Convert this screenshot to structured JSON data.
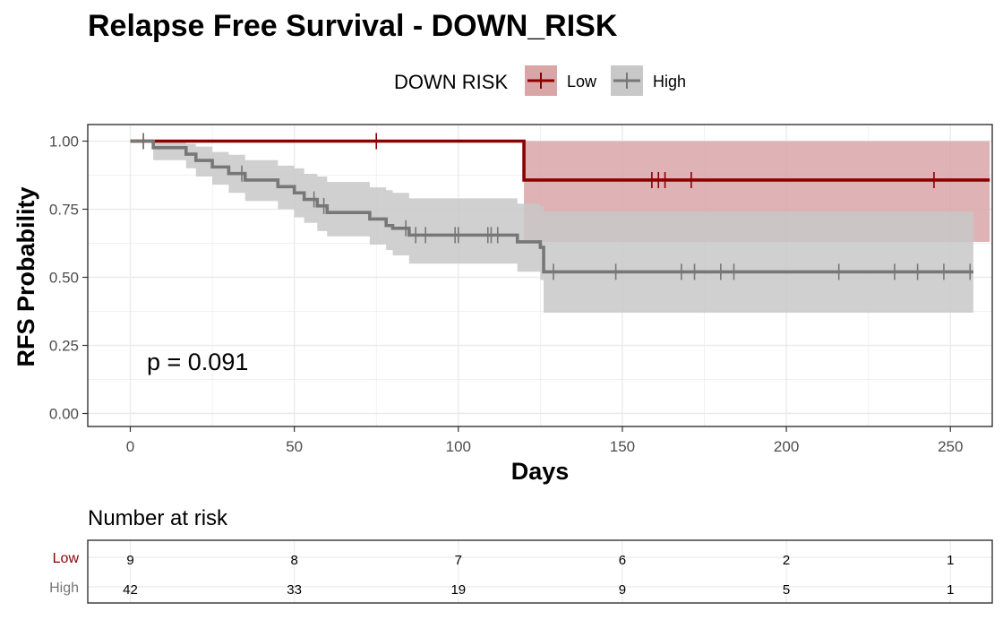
{
  "colors": {
    "low": "#8B0000",
    "high": "#777777",
    "low_fill": "#d9a6a8",
    "high_fill": "#c8c8c8",
    "grid": "#ebebeb"
  },
  "chart_data": {
    "type": "line",
    "title": "Relapse Free Survival - DOWN_RISK",
    "xlabel": "Days",
    "ylabel": "RFS Probability",
    "xlim": [
      0,
      262
    ],
    "ylim": [
      0,
      1
    ],
    "x_ticks": [
      0,
      50,
      100,
      150,
      200,
      250
    ],
    "y_ticks": [
      "0.00",
      "0.25",
      "0.50",
      "0.75",
      "1.00"
    ],
    "grid": true,
    "legend": {
      "title": "DOWN RISK",
      "position": "top",
      "entries": [
        "Low",
        "High"
      ]
    },
    "annotation": "p = 0.091",
    "series": [
      {
        "name": "Low",
        "color": "#8B0000",
        "steps": [
          [
            0,
            1.0
          ],
          [
            120,
            0.857
          ],
          [
            262,
            0.857
          ]
        ],
        "ci_upper": [
          [
            120,
            1.0
          ],
          [
            262,
            1.0
          ]
        ],
        "ci_lower": [
          [
            120,
            0.63
          ],
          [
            262,
            0.63
          ]
        ],
        "censor_times": [
          4,
          75,
          159,
          161,
          163,
          171,
          245
        ]
      },
      {
        "name": "High",
        "color": "#777777",
        "steps": [
          [
            0,
            1.0
          ],
          [
            7,
            0.976
          ],
          [
            17,
            0.952
          ],
          [
            20,
            0.929
          ],
          [
            25,
            0.905
          ],
          [
            30,
            0.881
          ],
          [
            35,
            0.857
          ],
          [
            45,
            0.833
          ],
          [
            50,
            0.81
          ],
          [
            53,
            0.786
          ],
          [
            57,
            0.762
          ],
          [
            60,
            0.738
          ],
          [
            73,
            0.714
          ],
          [
            78,
            0.69
          ],
          [
            80,
            0.68
          ],
          [
            85,
            0.655
          ],
          [
            118,
            0.63
          ],
          [
            125,
            0.61
          ],
          [
            126,
            0.52
          ],
          [
            257,
            0.52
          ]
        ],
        "ci_upper": [
          [
            7,
            1.0
          ],
          [
            17,
            0.99
          ],
          [
            20,
            0.98
          ],
          [
            25,
            0.96
          ],
          [
            30,
            0.95
          ],
          [
            35,
            0.93
          ],
          [
            45,
            0.91
          ],
          [
            50,
            0.9
          ],
          [
            53,
            0.88
          ],
          [
            57,
            0.87
          ],
          [
            60,
            0.85
          ],
          [
            73,
            0.83
          ],
          [
            78,
            0.82
          ],
          [
            80,
            0.81
          ],
          [
            85,
            0.79
          ],
          [
            118,
            0.77
          ],
          [
            125,
            0.76
          ],
          [
            126,
            0.74
          ],
          [
            257,
            0.74
          ]
        ],
        "ci_lower": [
          [
            7,
            0.93
          ],
          [
            17,
            0.9
          ],
          [
            20,
            0.87
          ],
          [
            25,
            0.84
          ],
          [
            30,
            0.81
          ],
          [
            35,
            0.78
          ],
          [
            45,
            0.75
          ],
          [
            50,
            0.72
          ],
          [
            53,
            0.7
          ],
          [
            57,
            0.67
          ],
          [
            60,
            0.65
          ],
          [
            73,
            0.62
          ],
          [
            78,
            0.6
          ],
          [
            80,
            0.58
          ],
          [
            85,
            0.55
          ],
          [
            118,
            0.52
          ],
          [
            125,
            0.49
          ],
          [
            126,
            0.37
          ],
          [
            257,
            0.37
          ]
        ],
        "censor_times": [
          4,
          34,
          56,
          59,
          84,
          87,
          90,
          99,
          100,
          109,
          110,
          112,
          129,
          148,
          168,
          172,
          180,
          184,
          216,
          233,
          240,
          248,
          256
        ]
      }
    ]
  },
  "risk_table": {
    "title": "Number at risk",
    "times": [
      0,
      50,
      100,
      150,
      200,
      250
    ],
    "rows": [
      {
        "label": "Low",
        "values": [
          "9",
          "8",
          "7",
          "6",
          "2",
          "1"
        ]
      },
      {
        "label": "High",
        "values": [
          "42",
          "33",
          "19",
          "9",
          "5",
          "1"
        ]
      }
    ]
  }
}
